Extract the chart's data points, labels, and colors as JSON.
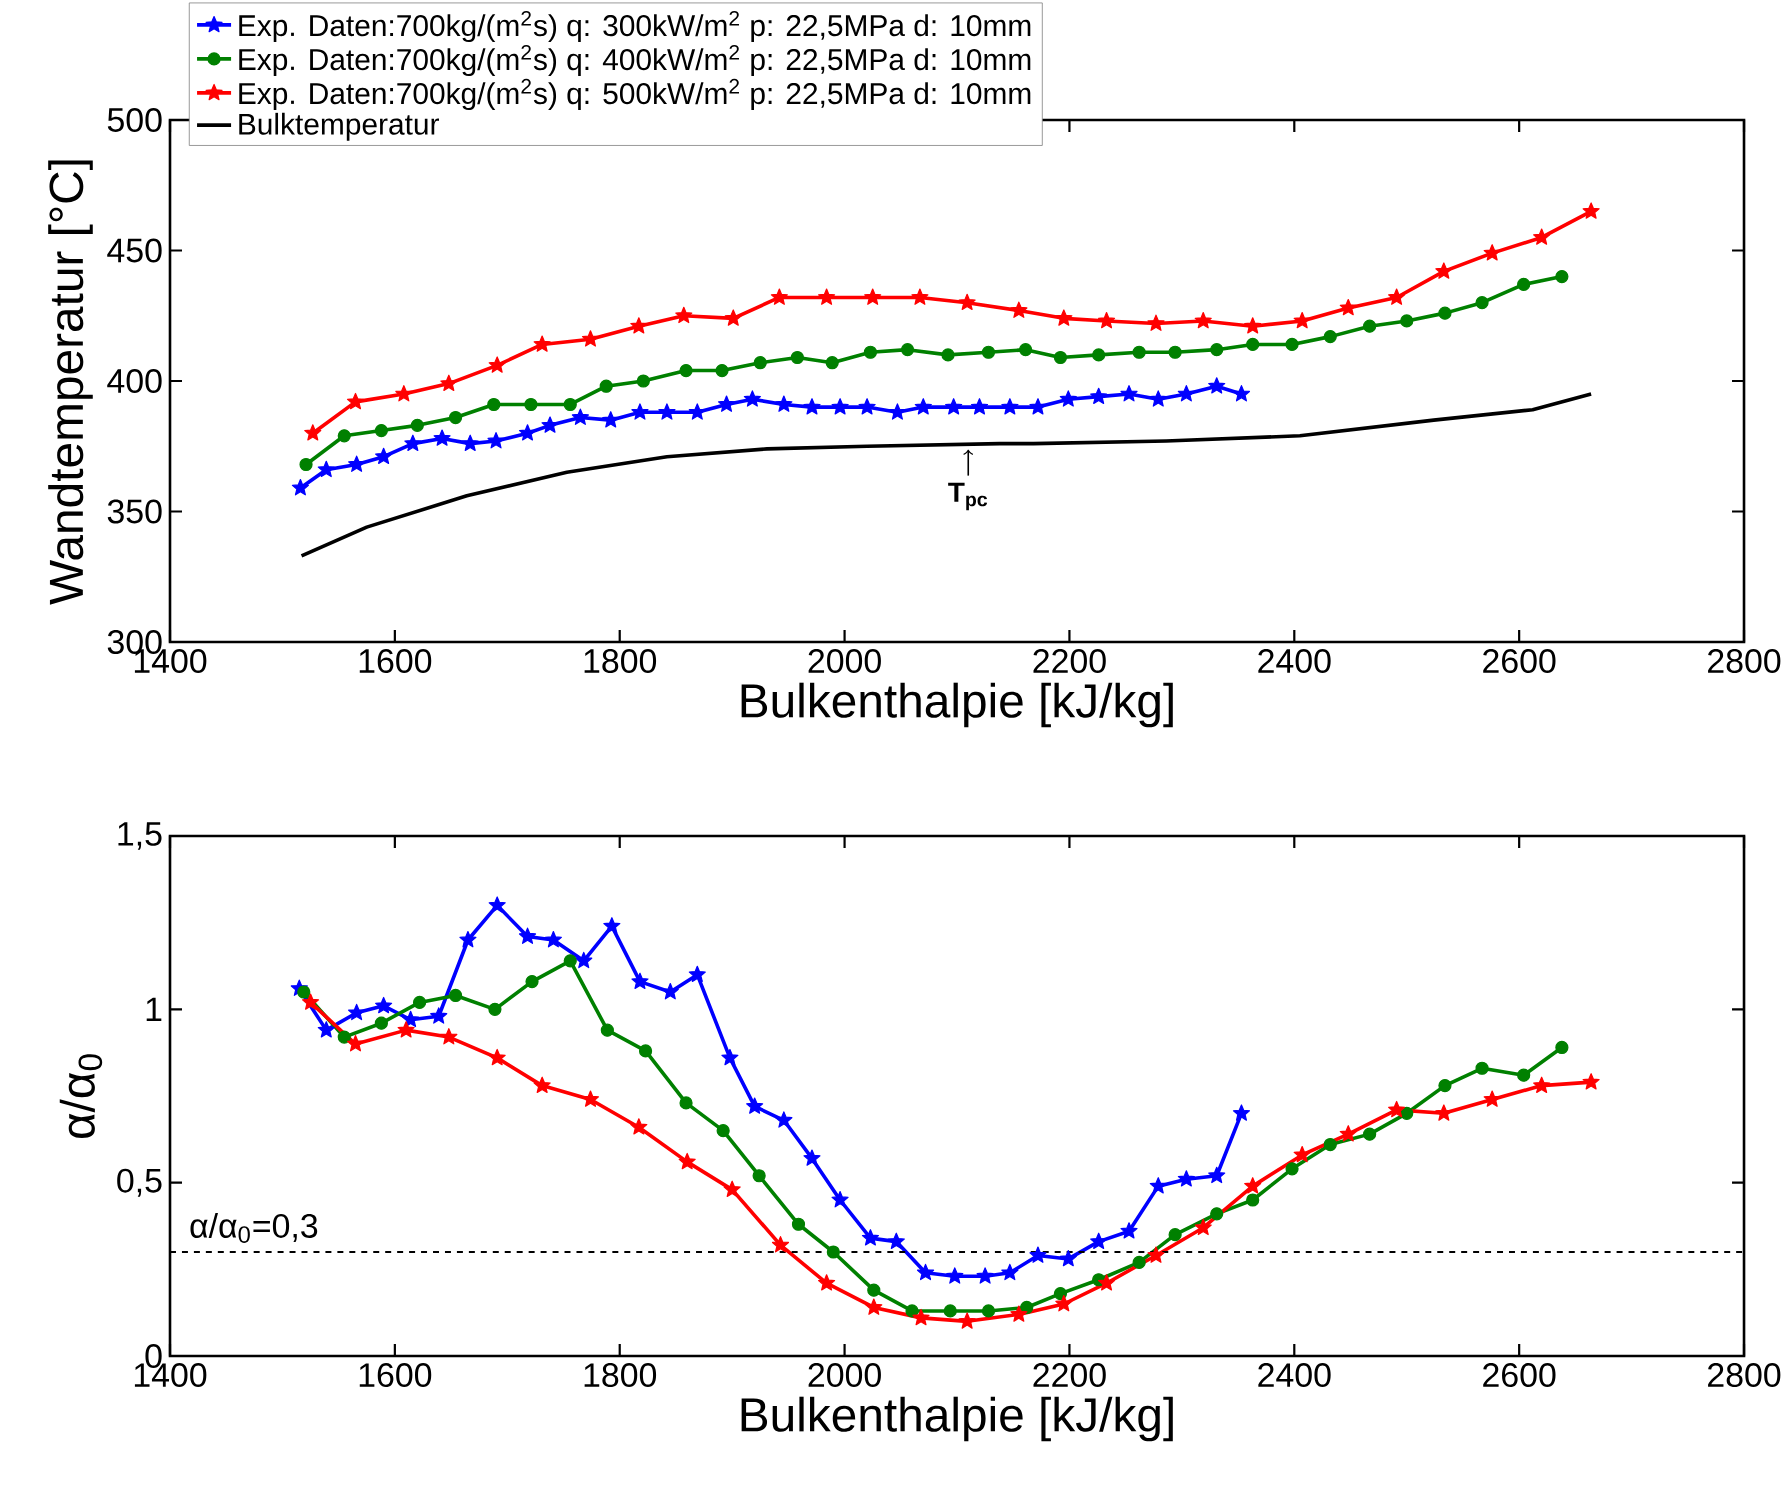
{
  "chart_data": [
    {
      "type": "line",
      "xlabel": "Bulkenthalpie [kJ/kg]",
      "ylabel": "Wandtemperatur [°C]",
      "xlim": [
        1400,
        2800
      ],
      "ylim": [
        300,
        500
      ],
      "xticks": [
        1400,
        1600,
        1800,
        2000,
        2200,
        2400,
        2600,
        2800
      ],
      "yticks": [
        300,
        350,
        400,
        450,
        500
      ],
      "legend": "top left",
      "annotations": [
        {
          "text": "T$_{pc}$",
          "x": 2110,
          "y": 376
        }
      ],
      "series": [
        {
          "name": "Exp. Daten:700kg/(m$^{2}$s) q: 300kW/m$^{2}$ p: 22,5MPa d: 10mm",
          "color": "#0000ff",
          "marker": "star",
          "x": [
            1516,
            1539,
            1566,
            1590,
            1616,
            1642,
            1667,
            1690,
            1718,
            1738,
            1765,
            1792,
            1818,
            1842,
            1869,
            1895,
            1918,
            1946,
            1971,
            1996,
            2020,
            2047,
            2070,
            2097,
            2120,
            2147,
            2172,
            2199,
            2226,
            2253,
            2279,
            2304,
            2331,
            2353
          ],
          "values": [
            359,
            366,
            368,
            371,
            376,
            378,
            376,
            377,
            380,
            383,
            386,
            385,
            388,
            388,
            388,
            391,
            393,
            391,
            390,
            390,
            390,
            388,
            390,
            390,
            390,
            390,
            390,
            393,
            394,
            395,
            393,
            395,
            398,
            395
          ]
        },
        {
          "name": "Exp. Daten:700kg/(m$^{2}$s) q: 400kW/m$^{2}$ p: 22,5MPa d: 10mm",
          "color": "#008000",
          "marker": "circle",
          "x": [
            1521,
            1555,
            1588,
            1620,
            1654,
            1688,
            1721,
            1756,
            1788,
            1821,
            1859,
            1891,
            1925,
            1958,
            1989,
            2023,
            2056,
            2092,
            2128,
            2161,
            2192,
            2226,
            2262,
            2294,
            2331,
            2363,
            2398,
            2432,
            2467,
            2500,
            2534,
            2567,
            2604,
            2638
          ],
          "values": [
            368,
            379,
            381,
            383,
            386,
            391,
            391,
            391,
            398,
            400,
            404,
            404,
            407,
            409,
            407,
            411,
            412,
            410,
            411,
            412,
            409,
            410,
            411,
            411,
            412,
            414,
            414,
            417,
            421,
            423,
            426,
            430,
            437,
            440
          ]
        },
        {
          "name": "Exp. Daten:700kg/(m$^{2}$s) q: 500kW/m$^{2}$ p: 22,5MPa d: 10mm",
          "color": "#ff0000",
          "marker": "star",
          "x": [
            1527,
            1565,
            1608,
            1648,
            1691,
            1731,
            1774,
            1817,
            1857,
            1901,
            1942,
            1984,
            2025,
            2067,
            2109,
            2155,
            2195,
            2233,
            2277,
            2319,
            2363,
            2407,
            2448,
            2491,
            2533,
            2576,
            2620,
            2664
          ],
          "values": [
            380,
            392,
            395,
            399,
            406,
            414,
            416,
            421,
            425,
            424,
            432,
            432,
            432,
            432,
            430,
            427,
            424,
            423,
            422,
            423,
            421,
            423,
            428,
            432,
            442,
            449,
            455,
            465
          ]
        },
        {
          "name": "Bulktemperatur",
          "color": "#000000",
          "marker": "none",
          "x": [
            1517,
            1575,
            1664,
            1753,
            1842,
            1931,
            2020,
            2138,
            2168,
            2286,
            2405,
            2524,
            2612,
            2664
          ],
          "values": [
            333,
            344,
            356,
            365,
            371,
            374,
            375,
            376,
            376,
            377,
            379,
            385,
            389,
            395
          ]
        }
      ]
    },
    {
      "type": "line",
      "xlabel": "Bulkenthalpie [kJ/kg]",
      "ylabel": "α/α$_{0}$",
      "xlim": [
        1400,
        2800
      ],
      "ylim": [
        0,
        1.5
      ],
      "xticks": [
        1400,
        1600,
        1800,
        2000,
        2200,
        2400,
        2600,
        2800
      ],
      "yticks": [
        0,
        {
          "value": 0.5,
          "label": "0,5"
        },
        1,
        {
          "value": 1.5,
          "label": "1,5"
        }
      ],
      "ref_lines": [
        {
          "axis": "y",
          "value": 0.3,
          "label": "α/α$_{0}$=0,3",
          "line_style": "dashed",
          "color": "#000000"
        }
      ],
      "series": [
        {
          "color": "#0000ff",
          "marker": "star",
          "x": [
            1515,
            1539,
            1566,
            1590,
            1614,
            1639,
            1665,
            1691,
            1718,
            1741,
            1768,
            1793,
            1818,
            1845,
            1869,
            1898,
            1920,
            1946,
            1971,
            1996,
            2023,
            2046,
            2072,
            2098,
            2125,
            2147,
            2172,
            2199,
            2226,
            2253,
            2279,
            2304,
            2331,
            2353
          ],
          "values": [
            1.06,
            0.94,
            0.99,
            1.01,
            0.97,
            0.98,
            1.2,
            1.3,
            1.21,
            1.2,
            1.14,
            1.24,
            1.08,
            1.05,
            1.1,
            0.86,
            0.72,
            0.68,
            0.57,
            0.45,
            0.34,
            0.33,
            0.24,
            0.23,
            0.23,
            0.24,
            0.29,
            0.28,
            0.33,
            0.36,
            0.49,
            0.51,
            0.52,
            0.7
          ]
        },
        {
          "color": "#008000",
          "marker": "circle",
          "x": [
            1519,
            1555,
            1588,
            1622,
            1654,
            1689,
            1722,
            1756,
            1789,
            1823,
            1859,
            1892,
            1924,
            1959,
            1990,
            2026,
            2060,
            2094,
            2128,
            2162,
            2192,
            2226,
            2262,
            2294,
            2331,
            2363,
            2398,
            2432,
            2467,
            2500,
            2534,
            2567,
            2604,
            2638
          ],
          "values": [
            1.05,
            0.92,
            0.96,
            1.02,
            1.04,
            1.0,
            1.08,
            1.14,
            0.94,
            0.88,
            0.73,
            0.65,
            0.52,
            0.38,
            0.3,
            0.19,
            0.13,
            0.13,
            0.13,
            0.14,
            0.18,
            0.22,
            0.27,
            0.35,
            0.41,
            0.45,
            0.54,
            0.61,
            0.64,
            0.7,
            0.78,
            0.83,
            0.81,
            0.89
          ]
        },
        {
          "color": "#ff0000",
          "marker": "star",
          "x": [
            1525,
            1565,
            1610,
            1648,
            1691,
            1731,
            1774,
            1817,
            1860,
            1900,
            1943,
            1984,
            2026,
            2068,
            2109,
            2155,
            2195,
            2233,
            2277,
            2319,
            2363,
            2407,
            2448,
            2491,
            2533,
            2576,
            2620,
            2664
          ],
          "values": [
            1.02,
            0.9,
            0.94,
            0.92,
            0.86,
            0.78,
            0.74,
            0.66,
            0.56,
            0.48,
            0.32,
            0.21,
            0.14,
            0.11,
            0.1,
            0.12,
            0.15,
            0.21,
            0.29,
            0.37,
            0.49,
            0.58,
            0.64,
            0.71,
            0.7,
            0.74,
            0.78,
            0.79
          ]
        }
      ]
    }
  ]
}
